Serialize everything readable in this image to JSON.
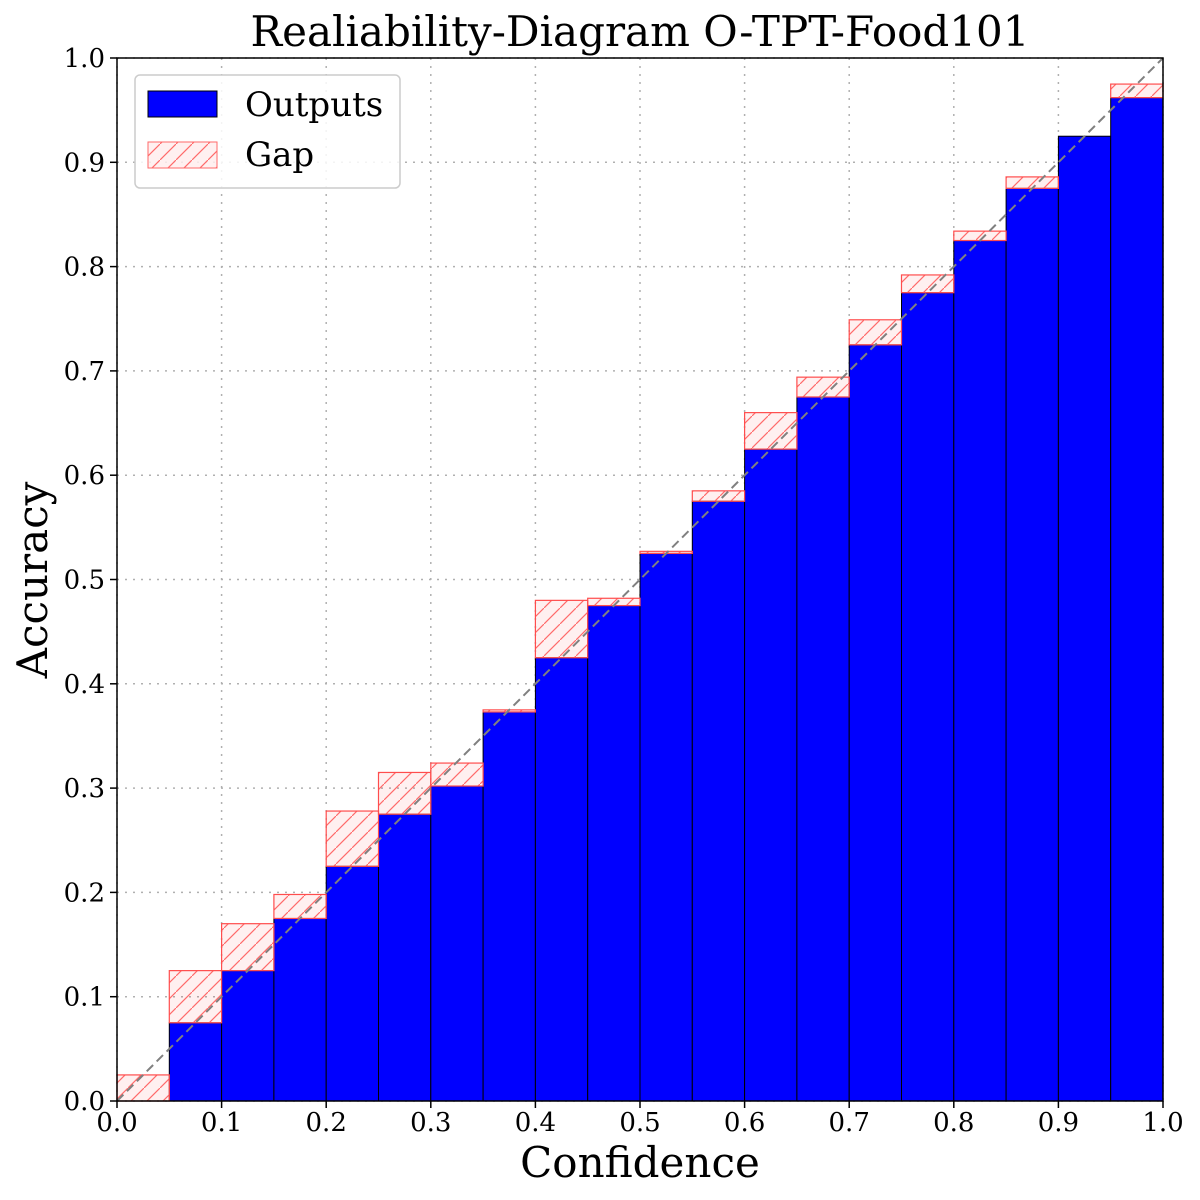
{
  "chart_data": {
    "type": "bar",
    "title": "Realiability-Diagram O-TPT-Food101",
    "xlabel": "Confidence",
    "ylabel": "Accuracy",
    "xlim": [
      0.0,
      1.0
    ],
    "ylim": [
      0.0,
      1.0
    ],
    "grid": true,
    "legend_position": "top-left",
    "x_ticks": [
      "0.0",
      "0.1",
      "0.2",
      "0.3",
      "0.4",
      "0.5",
      "0.6",
      "0.7",
      "0.8",
      "0.9",
      "1.0"
    ],
    "y_ticks": [
      "0.0",
      "0.1",
      "0.2",
      "0.3",
      "0.4",
      "0.5",
      "0.6",
      "0.7",
      "0.8",
      "0.9",
      "1.0"
    ],
    "bin_width": 0.05,
    "bin_starts": [
      0.0,
      0.05,
      0.1,
      0.15,
      0.2,
      0.25,
      0.3,
      0.35,
      0.4,
      0.45,
      0.5,
      0.55,
      0.6,
      0.65,
      0.7,
      0.75,
      0.8,
      0.85,
      0.9,
      0.95
    ],
    "series": [
      {
        "name": "Outputs",
        "color": "#0000ff",
        "values": [
          0.0,
          0.075,
          0.125,
          0.175,
          0.225,
          0.275,
          0.302,
          0.373,
          0.425,
          0.475,
          0.525,
          0.575,
          0.625,
          0.675,
          0.725,
          0.775,
          0.825,
          0.875,
          0.925,
          0.962
        ]
      },
      {
        "name": "Gap",
        "color": "#ff0000",
        "values": [
          0.025,
          0.125,
          0.17,
          0.198,
          0.278,
          0.315,
          0.324,
          0.375,
          0.48,
          0.482,
          0.527,
          0.585,
          0.66,
          0.694,
          0.749,
          0.792,
          0.834,
          0.886,
          0.925,
          0.975
        ]
      }
    ],
    "diagonal": {
      "from": [
        0.0,
        0.0
      ],
      "to": [
        1.0,
        1.0
      ],
      "color": "#808080"
    }
  }
}
